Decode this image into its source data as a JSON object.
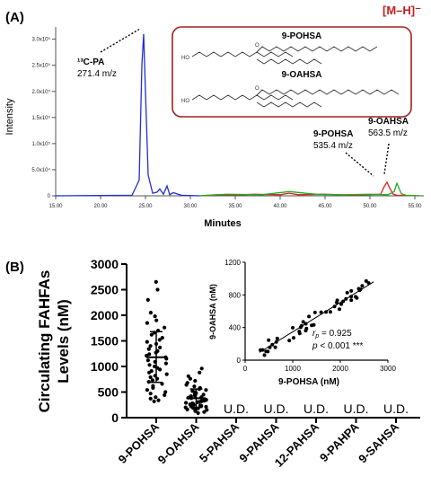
{
  "panel_a": {
    "label": "(A)",
    "ion_mode": "[M–H]⁻",
    "ylabel": "Intensity",
    "xlabel": "Minutes",
    "y_ticks": [
      "0",
      "5.0x10⁴",
      "1.0x10⁵",
      "1.5x10⁵",
      "2.0x10⁵",
      "2.5x10⁵",
      "3.0x10⁵"
    ],
    "x_ticks": [
      "15.00",
      "20.00",
      "25.00",
      "30.00",
      "35.00",
      "40.00",
      "45.00",
      "50.00",
      "55.00"
    ],
    "annotations": {
      "standard_name": "¹³C-PA",
      "standard_mz": "271.4 m/z",
      "pohsa_name": "9-POHSA",
      "pohsa_mz": "535.4 m/z",
      "oahsa_name": "9-OAHSA",
      "oahsa_mz": "563.5 m/z"
    },
    "structures": {
      "top": "9-POHSA",
      "bottom": "9-OAHSA"
    },
    "colors": {
      "standard": "#1f2fd6",
      "pohsa": "#e02020",
      "oahsa": "#1faa1f",
      "box": "#a02020"
    }
  },
  "panel_b": {
    "label": "(B)",
    "ylabel_line1": "Circulating FAHFAs",
    "ylabel_line2": "Levels (nM)",
    "y_ticks": [
      "0",
      "500",
      "1000",
      "1500",
      "2000",
      "2500",
      "3000"
    ],
    "ud_label": "U.D.",
    "inset": {
      "xlabel": "9-POHSA (nM)",
      "ylabel": "9-OAHSA (nM)",
      "x_ticks": [
        "0",
        "1000",
        "2000",
        "3000"
      ],
      "y_ticks": [
        "0",
        "400",
        "800",
        "1200"
      ],
      "r_label": "r",
      "r_sub": "p",
      "r_value": " = 0.925",
      "p_label": "p",
      "p_value": " < 0.001 ***"
    }
  },
  "chart_data": [
    {
      "type": "line",
      "panel": "A",
      "xlabel": "Minutes",
      "ylabel": "Intensity",
      "xlim": [
        15,
        56
      ],
      "ylim": [
        -10000,
        320000
      ],
      "series": [
        {
          "name": "¹³C-PA 271.4 m/z",
          "x": [
            15,
            23.5,
            24.3,
            24.6,
            24.8,
            25.0,
            25.3,
            25.8,
            26.3,
            26.6,
            27.0,
            27.4,
            27.7,
            28.1,
            29,
            31
          ],
          "y": [
            0,
            1000,
            30000,
            250000,
            310000,
            200000,
            40000,
            5000,
            7000,
            13000,
            3000,
            19000,
            2000,
            6000,
            1000,
            0
          ]
        },
        {
          "name": "9-POHSA 535.4 m/z",
          "x": [
            31,
            33,
            35,
            37,
            40,
            41,
            42,
            45,
            48,
            51.2,
            51.6,
            51.9,
            52.2,
            52.6,
            53,
            55.5
          ],
          "y": [
            0,
            2000,
            1000,
            3000,
            2000,
            5000,
            2000,
            3000,
            1000,
            3000,
            18000,
            26000,
            15000,
            3000,
            1000,
            0
          ]
        },
        {
          "name": "9-OAHSA 563.5 m/z",
          "x": [
            31,
            34,
            38,
            41,
            44,
            47,
            50,
            52,
            52.7,
            53.0,
            53.2,
            53.5,
            54,
            55.5
          ],
          "y": [
            0,
            3000,
            2000,
            8000,
            3000,
            2000,
            3000,
            2000,
            8000,
            24000,
            16000,
            4000,
            1000,
            0
          ]
        }
      ]
    },
    {
      "type": "scatter",
      "panel": "B",
      "ylabel": "Circulating FAHFAs Levels (nM)",
      "ylim": [
        0,
        3000
      ],
      "categories": [
        "9-POHSA",
        "9-OAHSA",
        "5-PAHSA",
        "9-PAHSA",
        "12-PAHSA",
        "9-PAHPA",
        "9-SAHSA"
      ],
      "summary": [
        {
          "category": "9-POHSA",
          "mean": 1180,
          "sd_low": 690,
          "sd_high": 1680
        },
        {
          "category": "9-OAHSA",
          "mean": 380,
          "sd_low": 200,
          "sd_high": 560
        }
      ],
      "undetected": [
        "5-PAHSA",
        "9-PAHSA",
        "12-PAHSA",
        "9-PAHPA",
        "9-SAHSA"
      ]
    },
    {
      "type": "scatter",
      "panel": "B-inset",
      "xlabel": "9-POHSA (nM)",
      "ylabel": "9-OAHSA (nM)",
      "xlim": [
        0,
        3000
      ],
      "ylim": [
        0,
        1200
      ],
      "r_p": 0.925,
      "p": "< 0.001",
      "fit": {
        "x": [
          300,
          2700
        ],
        "y": [
          95,
          960
        ]
      }
    }
  ]
}
